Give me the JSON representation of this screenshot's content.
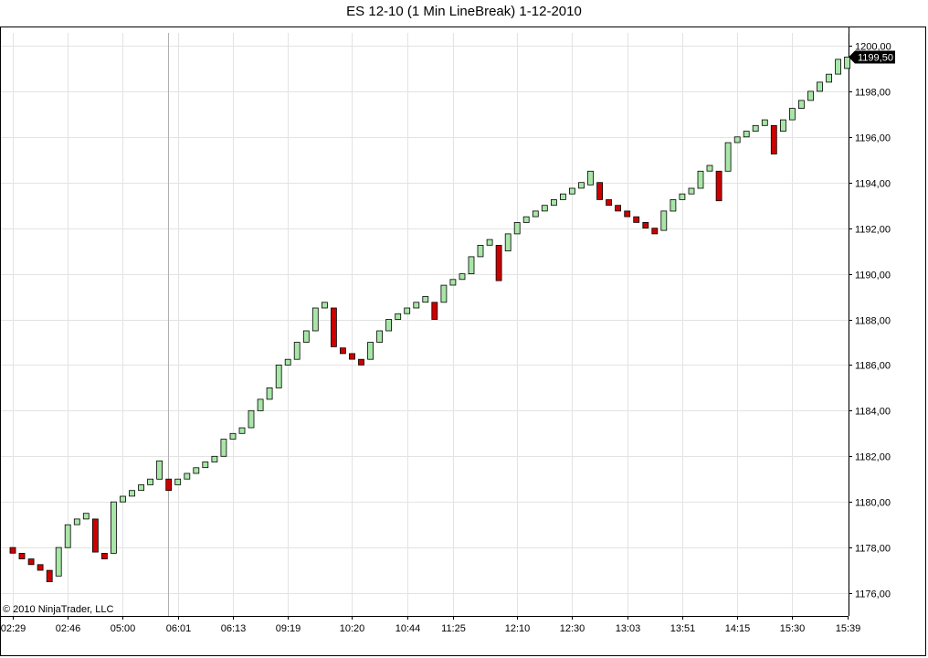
{
  "chart_data": {
    "type": "linebreak",
    "title": "ES 12-10 (1 Min LineBreak)  1-12-2010",
    "copyright": "© 2010 NinjaTrader, LLC",
    "ylim": [
      1175,
      1200.8
    ],
    "y_ticks": [
      "1176,00",
      "1178,00",
      "1180,00",
      "1182,00",
      "1184,00",
      "1186,00",
      "1188,00",
      "1190,00",
      "1192,00",
      "1194,00",
      "1196,00",
      "1198,00",
      "1200,00"
    ],
    "y_tick_values": [
      1176,
      1178,
      1180,
      1182,
      1184,
      1186,
      1188,
      1190,
      1192,
      1194,
      1196,
      1198,
      1200
    ],
    "x_ticks": [
      {
        "label": "02:29",
        "index": 0
      },
      {
        "label": "02:46",
        "index": 6
      },
      {
        "label": "05:00",
        "index": 12
      },
      {
        "label": "06:01",
        "index": 18
      },
      {
        "label": "06:13",
        "index": 24
      },
      {
        "label": "09:19",
        "index": 30
      },
      {
        "label": "10:20",
        "index": 37
      },
      {
        "label": "10:44",
        "index": 43
      },
      {
        "label": "11:25",
        "index": 48
      },
      {
        "label": "12:10",
        "index": 55
      },
      {
        "label": "12:30",
        "index": 61
      },
      {
        "label": "13:03",
        "index": 67
      },
      {
        "label": "13:51",
        "index": 73
      },
      {
        "label": "14:15",
        "index": 79
      },
      {
        "label": "15:30",
        "index": 85
      },
      {
        "label": "15:39",
        "index": 91
      }
    ],
    "current_price": "1199,50",
    "colors": {
      "up": "#a8e6a8",
      "down": "#cc0000",
      "outline": "#000000",
      "grid": "#e3e3e3"
    },
    "bricks": [
      [
        1178.0,
        1177.75
      ],
      [
        1177.75,
        1177.5
      ],
      [
        1177.5,
        1177.25
      ],
      [
        1177.25,
        1177.0
      ],
      [
        1177.0,
        1176.5
      ],
      [
        1176.75,
        1178.0
      ],
      [
        1178.0,
        1179.0
      ],
      [
        1179.0,
        1179.25
      ],
      [
        1179.25,
        1179.5
      ],
      [
        1179.25,
        1177.8
      ],
      [
        1177.75,
        1177.5
      ],
      [
        1177.75,
        1180.0
      ],
      [
        1180.0,
        1180.25
      ],
      [
        1180.25,
        1180.5
      ],
      [
        1180.5,
        1180.75
      ],
      [
        1180.75,
        1181.0
      ],
      [
        1181.0,
        1181.8
      ],
      [
        1181.0,
        1180.5
      ],
      [
        1180.75,
        1181.0
      ],
      [
        1181.0,
        1181.25
      ],
      [
        1181.25,
        1181.5
      ],
      [
        1181.5,
        1181.75
      ],
      [
        1181.75,
        1182.0
      ],
      [
        1182.0,
        1182.75
      ],
      [
        1182.75,
        1183.0
      ],
      [
        1183.0,
        1183.25
      ],
      [
        1183.25,
        1184.0
      ],
      [
        1184.0,
        1184.5
      ],
      [
        1184.5,
        1185.0
      ],
      [
        1185.0,
        1186.0
      ],
      [
        1186.0,
        1186.25
      ],
      [
        1186.25,
        1187.0
      ],
      [
        1187.0,
        1187.5
      ],
      [
        1187.5,
        1188.5
      ],
      [
        1188.5,
        1188.75
      ],
      [
        1188.5,
        1186.8
      ],
      [
        1186.75,
        1186.5
      ],
      [
        1186.5,
        1186.25
      ],
      [
        1186.25,
        1186.0
      ],
      [
        1186.25,
        1187.0
      ],
      [
        1187.0,
        1187.5
      ],
      [
        1187.5,
        1188.0
      ],
      [
        1188.0,
        1188.25
      ],
      [
        1188.25,
        1188.5
      ],
      [
        1188.5,
        1188.75
      ],
      [
        1188.75,
        1189.0
      ],
      [
        1188.75,
        1188.0
      ],
      [
        1188.75,
        1189.5
      ],
      [
        1189.5,
        1189.75
      ],
      [
        1189.75,
        1190.0
      ],
      [
        1190.0,
        1190.75
      ],
      [
        1190.75,
        1191.25
      ],
      [
        1191.25,
        1191.5
      ],
      [
        1191.25,
        1189.7
      ],
      [
        1191.0,
        1191.75
      ],
      [
        1191.75,
        1192.25
      ],
      [
        1192.25,
        1192.5
      ],
      [
        1192.5,
        1192.75
      ],
      [
        1192.75,
        1193.0
      ],
      [
        1193.0,
        1193.25
      ],
      [
        1193.25,
        1193.5
      ],
      [
        1193.5,
        1193.75
      ],
      [
        1193.75,
        1194.0
      ],
      [
        1193.9,
        1194.5
      ],
      [
        1194.0,
        1193.25
      ],
      [
        1193.25,
        1193.0
      ],
      [
        1193.0,
        1192.75
      ],
      [
        1192.75,
        1192.5
      ],
      [
        1192.5,
        1192.25
      ],
      [
        1192.25,
        1192.0
      ],
      [
        1192.0,
        1191.75
      ],
      [
        1191.9,
        1192.75
      ],
      [
        1192.75,
        1193.25
      ],
      [
        1193.25,
        1193.5
      ],
      [
        1193.5,
        1193.75
      ],
      [
        1193.75,
        1194.5
      ],
      [
        1194.5,
        1194.75
      ],
      [
        1194.5,
        1193.2
      ],
      [
        1194.5,
        1195.75
      ],
      [
        1195.75,
        1196.0
      ],
      [
        1196.0,
        1196.25
      ],
      [
        1196.25,
        1196.5
      ],
      [
        1196.5,
        1196.75
      ],
      [
        1196.5,
        1195.25
      ],
      [
        1196.25,
        1196.75
      ],
      [
        1196.75,
        1197.25
      ],
      [
        1197.25,
        1197.6
      ],
      [
        1197.6,
        1198.0
      ],
      [
        1198.0,
        1198.4
      ],
      [
        1198.4,
        1198.75
      ],
      [
        1198.75,
        1199.4
      ],
      [
        1199.0,
        1199.5
      ]
    ]
  }
}
